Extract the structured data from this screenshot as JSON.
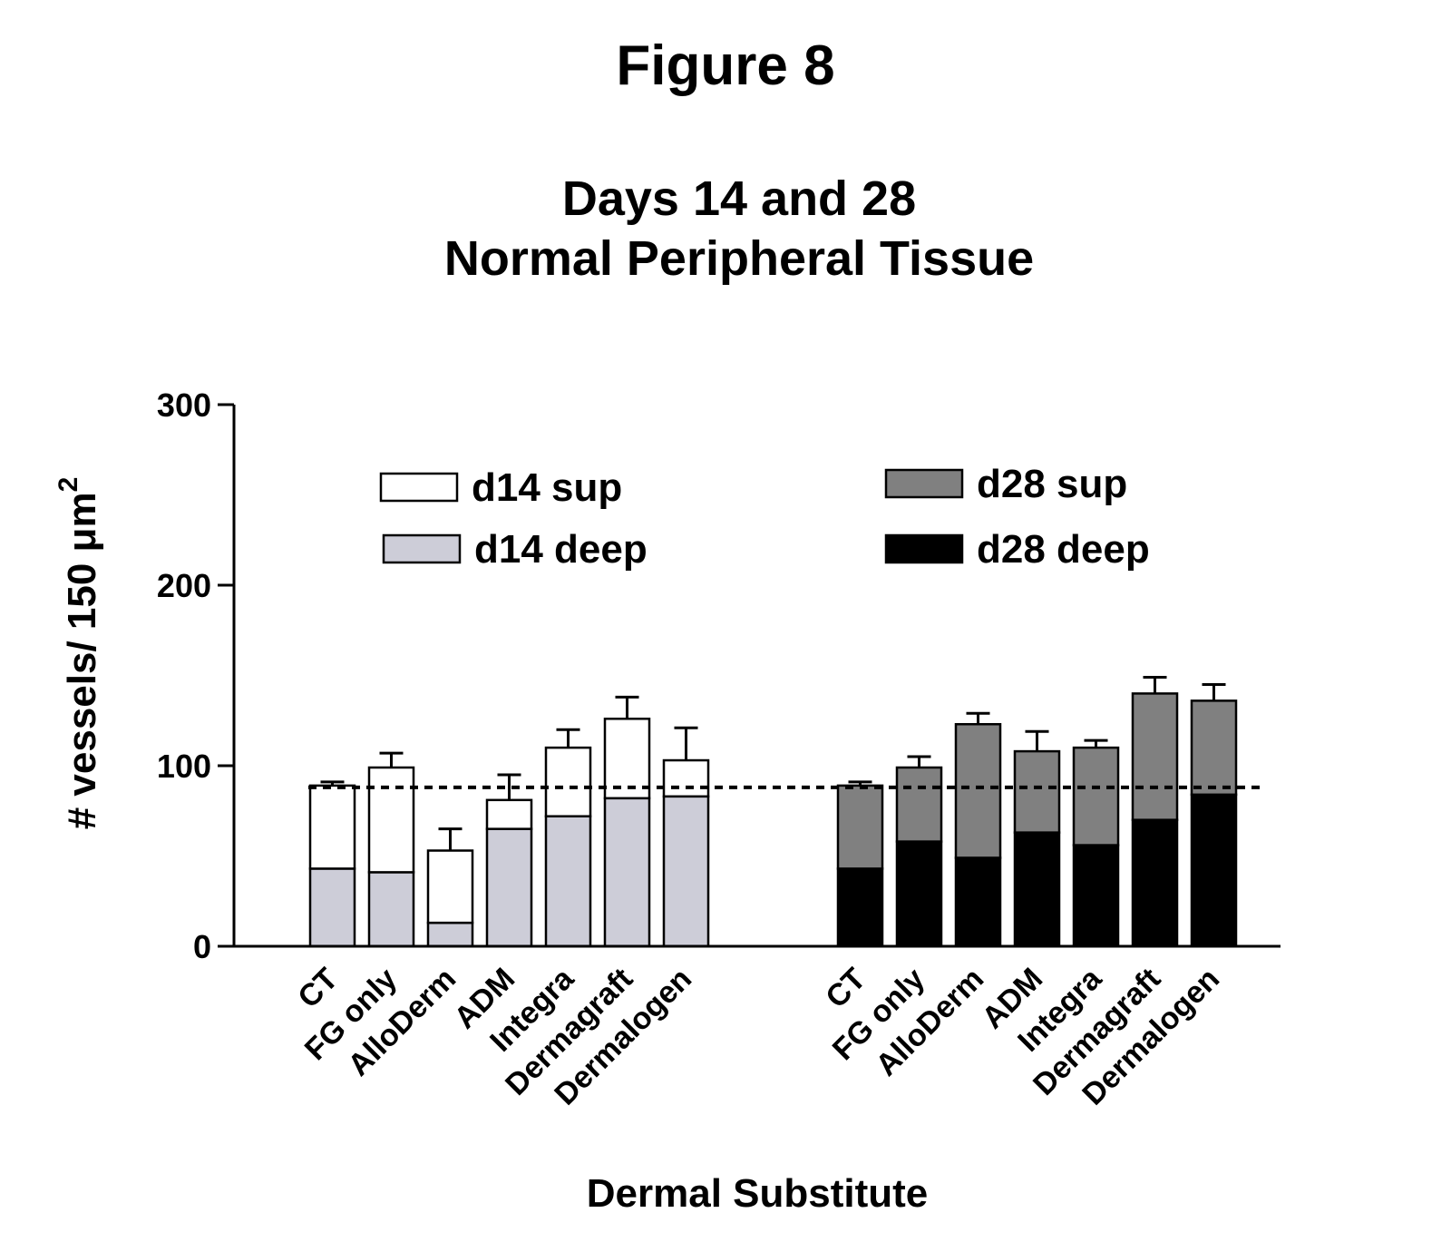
{
  "figure_label": "Figure 8",
  "chart_data": {
    "type": "bar",
    "stacked": true,
    "title": [
      "Days 14 and 28",
      "Normal Peripheral Tissue"
    ],
    "xlabel": "Dermal Substitute",
    "ylabel_main": "# vessels/ 150 μm",
    "ylabel_superscript": "2",
    "ylim": [
      0,
      300
    ],
    "yticks": [
      0,
      100,
      200,
      300
    ],
    "reference_line": 88,
    "groups": [
      {
        "categories": [
          "CT",
          "FG only",
          "AlloDerm",
          "ADM",
          "Integra",
          "Dermagraft",
          "Dermalogen"
        ],
        "series": [
          {
            "name": "d14 deep",
            "color": "#cdcdd8",
            "values": [
              43,
              41,
              13,
              65,
              72,
              82,
              83
            ]
          },
          {
            "name": "d14 sup",
            "color": "#ffffff",
            "values": [
              46,
              58,
              40,
              16,
              38,
              44,
              20
            ]
          }
        ],
        "totals": [
          89,
          99,
          53,
          81,
          110,
          126,
          103
        ],
        "error_upper": [
          91,
          107,
          65,
          95,
          120,
          138,
          121
        ]
      },
      {
        "categories": [
          "CT",
          "FG only",
          "AlloDerm",
          "ADM",
          "Integra",
          "Dermagraft",
          "Dermalogen"
        ],
        "series": [
          {
            "name": "d28 deep",
            "color": "#000000",
            "values": [
              43,
              58,
              49,
              63,
              56,
              70,
              84
            ]
          },
          {
            "name": "d28 sup",
            "color": "#808080",
            "values": [
              46,
              41,
              74,
              45,
              54,
              70,
              52
            ]
          }
        ],
        "totals": [
          89,
          99,
          123,
          108,
          110,
          140,
          136
        ],
        "error_upper": [
          91,
          105,
          129,
          119,
          114,
          149,
          145
        ]
      }
    ],
    "legend": [
      {
        "label": "d14 sup",
        "color": "#ffffff"
      },
      {
        "label": "d14 deep",
        "color": "#cdcdd8"
      },
      {
        "label": "d28 sup",
        "color": "#808080"
      },
      {
        "label": "d28 deep",
        "color": "#000000"
      }
    ],
    "grid": false
  }
}
